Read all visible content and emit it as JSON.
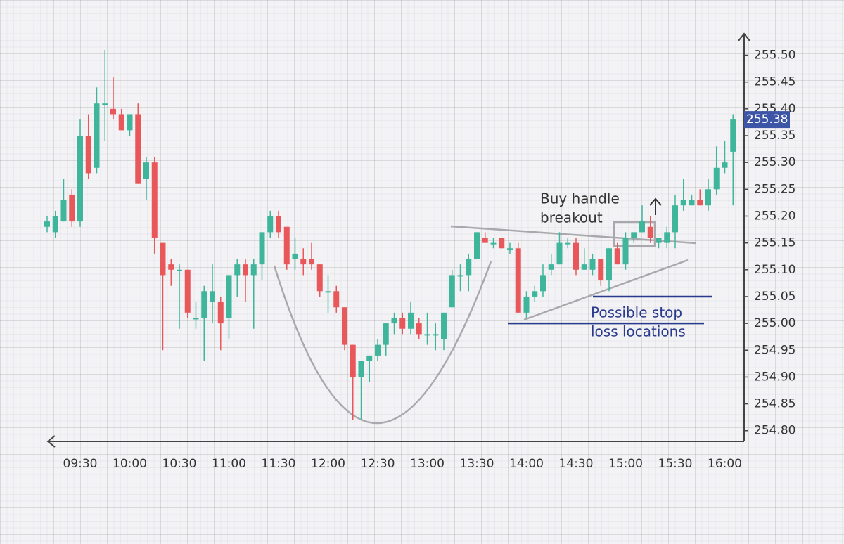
{
  "chart_data": {
    "type": "candlestick",
    "categories": [
      null,
      null,
      null,
      null,
      "09:30",
      null,
      null,
      null,
      null,
      null,
      "10:00",
      null,
      null,
      null,
      null,
      null,
      "10:30",
      null,
      null,
      null,
      null,
      null,
      "11:00",
      null,
      null,
      null,
      null,
      null,
      "11:30",
      null,
      null,
      null,
      null,
      null,
      "12:00",
      null,
      null,
      null,
      null,
      null,
      "12:30",
      null,
      null,
      null,
      null,
      null,
      "13:00",
      null,
      null,
      null,
      null,
      null,
      "13:30",
      null,
      null,
      null,
      null,
      null,
      "14:00",
      null,
      null,
      null,
      null,
      null,
      "14:30",
      null,
      null,
      null,
      null,
      null,
      "15:00",
      null,
      null,
      null,
      null,
      null,
      "15:30",
      null,
      null,
      null,
      null,
      null,
      "16:00",
      null
    ],
    "open": [
      255.18,
      255.17,
      255.19,
      255.24,
      255.19,
      255.35,
      255.29,
      255.41,
      255.4,
      255.39,
      255.36,
      255.39,
      255.27,
      255.3,
      255.15,
      255.11,
      255.1,
      255.1,
      255.01,
      255.01,
      255.04,
      255.04,
      255.01,
      255.09,
      255.11,
      255.09,
      255.11,
      255.17,
      255.2,
      255.18,
      255.12,
      255.12,
      255.12,
      255.11,
      255.06,
      255.06,
      255.03,
      254.96,
      254.9,
      254.93,
      254.94,
      254.96,
      255.0,
      255.01,
      254.99,
      255.0,
      254.98,
      254.98,
      254.97,
      255.03,
      255.09,
      255.09,
      255.12,
      255.16,
      255.15,
      255.16,
      255.14,
      255.14,
      255.02,
      255.05,
      255.06,
      255.1,
      255.11,
      255.15,
      255.15,
      255.1,
      255.1,
      255.12,
      255.08,
      255.14,
      255.11,
      255.16,
      255.17,
      255.18,
      255.15,
      255.15,
      255.17,
      255.22,
      255.22,
      255.23,
      255.22,
      255.25,
      255.29,
      255.32
    ],
    "high": [
      255.2,
      255.21,
      255.27,
      255.25,
      255.38,
      255.39,
      255.44,
      255.51,
      255.46,
      255.4,
      255.39,
      255.41,
      255.31,
      255.31,
      255.15,
      255.12,
      255.11,
      255.1,
      255.04,
      255.07,
      255.11,
      255.05,
      255.09,
      255.12,
      255.12,
      255.12,
      255.17,
      255.21,
      255.21,
      255.18,
      255.16,
      255.14,
      255.15,
      255.11,
      255.09,
      255.07,
      255.03,
      254.96,
      254.93,
      254.94,
      254.97,
      255.0,
      255.02,
      255.02,
      255.04,
      255.01,
      255.02,
      255.0,
      255.02,
      255.1,
      255.11,
      255.13,
      255.17,
      255.17,
      255.16,
      255.16,
      255.15,
      255.15,
      255.06,
      255.07,
      255.11,
      255.13,
      255.17,
      255.16,
      255.16,
      255.14,
      255.13,
      255.12,
      255.14,
      255.15,
      255.17,
      255.17,
      255.22,
      255.2,
      255.16,
      255.18,
      255.24,
      255.27,
      255.24,
      255.25,
      255.27,
      255.33,
      255.34,
      255.39
    ],
    "low": [
      255.17,
      255.16,
      255.19,
      255.18,
      255.18,
      255.27,
      255.28,
      255.34,
      255.38,
      255.36,
      255.35,
      255.26,
      255.23,
      255.13,
      254.95,
      255.07,
      254.99,
      255.01,
      254.99,
      254.93,
      255.0,
      254.95,
      254.97,
      255.05,
      255.04,
      254.99,
      255.08,
      255.16,
      255.16,
      255.1,
      255.1,
      255.09,
      255.1,
      255.05,
      255.02,
      255.02,
      254.95,
      254.82,
      254.82,
      254.89,
      254.93,
      254.94,
      254.98,
      254.98,
      254.98,
      254.97,
      254.96,
      254.95,
      254.95,
      255.03,
      255.06,
      255.06,
      255.12,
      255.15,
      255.14,
      255.14,
      255.13,
      255.02,
      255.01,
      255.04,
      255.05,
      255.09,
      255.11,
      255.14,
      255.09,
      255.1,
      255.09,
      255.07,
      255.06,
      255.11,
      255.1,
      255.15,
      255.17,
      255.15,
      255.14,
      255.14,
      255.14,
      255.21,
      255.22,
      255.22,
      255.21,
      255.24,
      255.28,
      255.22
    ],
    "close": [
      255.19,
      255.2,
      255.23,
      255.19,
      255.35,
      255.28,
      255.41,
      255.41,
      255.39,
      255.36,
      255.39,
      255.26,
      255.3,
      255.16,
      255.09,
      255.1,
      255.1,
      255.02,
      255.01,
      255.06,
      255.06,
      255.0,
      255.09,
      255.11,
      255.09,
      255.11,
      255.17,
      255.2,
      255.17,
      255.11,
      255.13,
      255.11,
      255.11,
      255.06,
      255.06,
      255.03,
      254.96,
      254.9,
      254.93,
      254.94,
      254.96,
      255.0,
      255.01,
      254.99,
      255.02,
      254.98,
      254.98,
      254.98,
      255.02,
      255.09,
      255.09,
      255.12,
      255.17,
      255.15,
      255.15,
      255.14,
      255.14,
      255.02,
      255.05,
      255.06,
      255.09,
      255.11,
      255.15,
      255.15,
      255.1,
      255.11,
      255.12,
      255.08,
      255.14,
      255.11,
      255.16,
      255.17,
      255.19,
      255.16,
      255.16,
      255.17,
      255.22,
      255.23,
      255.23,
      255.22,
      255.25,
      255.29,
      255.3,
      255.38
    ],
    "up_color": "#3fb59c",
    "down_color": "#e8585b",
    "ylim": [
      254.78,
      255.54
    ],
    "yticks": [
      {
        "value": 254.8,
        "label": "254.80"
      },
      254.85,
      {
        "value": 254.9,
        "label": "254.90"
      },
      254.95,
      {
        "value": 255.0,
        "label": "255.00"
      },
      255.05,
      {
        "value": 255.1,
        "label": "255.10"
      },
      255.15,
      {
        "value": 255.2,
        "label": "255.20"
      },
      255.25,
      {
        "value": 255.3,
        "label": "255.30"
      },
      255.35,
      {
        "value": 255.4,
        "label": "255.40"
      },
      255.45,
      {
        "value": 255.5,
        "label": "255.50"
      }
    ],
    "last_price": 255.38,
    "stop_levels": [
      255.05,
      255.0
    ],
    "annotations": [
      "Buy handle",
      "breakout",
      "Possible stop",
      "loss locations"
    ]
  }
}
